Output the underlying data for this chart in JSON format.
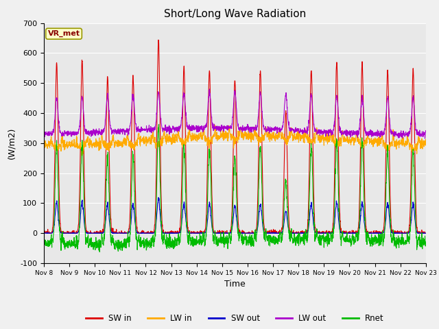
{
  "title": "Short/Long Wave Radiation",
  "xlabel": "Time",
  "ylabel": "(W/m2)",
  "ylim": [
    -100,
    700
  ],
  "yticks": [
    -100,
    0,
    100,
    200,
    300,
    400,
    500,
    600,
    700
  ],
  "plot_bg": "#e8e8e8",
  "fig_bg": "#f0f0f0",
  "series": {
    "SW_in": {
      "color": "#dd0000",
      "label": "SW in"
    },
    "LW_in": {
      "color": "#ffaa00",
      "label": "LW in"
    },
    "SW_out": {
      "color": "#0000cc",
      "label": "SW out"
    },
    "LW_out": {
      "color": "#aa00cc",
      "label": "LW out"
    },
    "Rnet": {
      "color": "#00bb00",
      "label": "Rnet"
    }
  },
  "station_label": "VR_met",
  "days": 15,
  "start_day": 8,
  "sw_in_peaks": [
    565,
    575,
    520,
    525,
    645,
    555,
    545,
    510,
    545,
    405,
    545,
    570,
    565,
    545,
    545
  ]
}
